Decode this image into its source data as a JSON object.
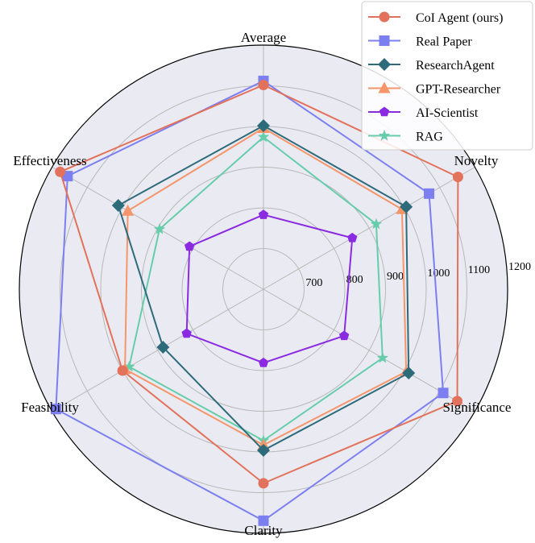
{
  "chart_data": {
    "type": "radar",
    "axes": [
      "Average",
      "Novelty",
      "Significance",
      "Clarity",
      "Feasibility",
      "Effectiveness"
    ],
    "r_ticks": [
      700,
      800,
      900,
      1000,
      1100,
      1200
    ],
    "r_range": [
      600,
      1200
    ],
    "grid": true,
    "legend_position": "top-right",
    "series": [
      {
        "name": "CoI Agent (ours)",
        "marker": "circle",
        "color": "#E2725B",
        "values": [
          1102,
          1152,
          1150,
          1077,
          1000,
          1177
        ]
      },
      {
        "name": "Real Paper",
        "marker": "square",
        "color": "#7B7FEF",
        "values": [
          1112,
          1070,
          1110,
          1169,
          1189,
          1156
        ]
      },
      {
        "name": "ResearchAgent",
        "marker": "diamond",
        "color": "#2E6B7A",
        "values": [
          1002,
          1005,
          1012,
          996,
          885,
          1012
        ]
      },
      {
        "name": "GPT-Researcher",
        "marker": "triangle",
        "color": "#F4956A",
        "values": [
          996,
          993,
          1005,
          983,
          993,
          985
        ]
      },
      {
        "name": "AI-Scientist",
        "marker": "pentagon",
        "color": "#8A2BE2",
        "values": [
          783,
          852,
          829,
          781,
          818,
          810
        ]
      },
      {
        "name": "RAG",
        "marker": "star",
        "color": "#66CDAA",
        "values": [
          974,
          920,
          938,
          972,
          981,
          895
        ]
      }
    ]
  }
}
